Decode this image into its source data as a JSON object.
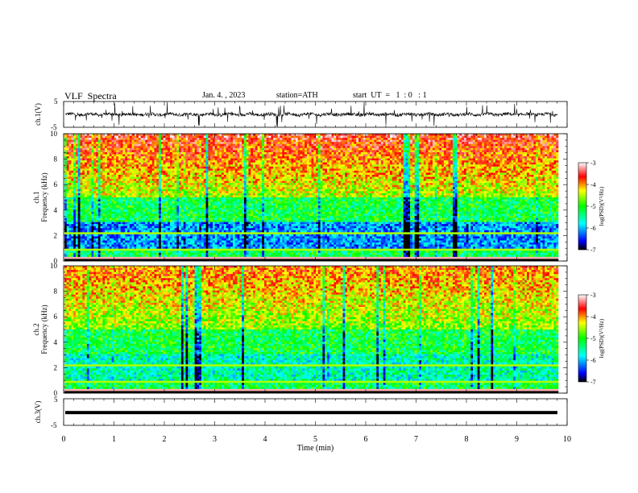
{
  "header": {
    "title": "VLF  Spectra",
    "date": "Jan. 4. , 2023",
    "station": "station=ATH",
    "start": "start  UT  =   1  : 0   : 1"
  },
  "chart_data": [
    {
      "type": "line",
      "name": "ch1-waveform",
      "ylabel": "ch.1(V)",
      "yticks": [
        "5",
        "-5"
      ],
      "ylim": [
        -5,
        5
      ],
      "xlim": [
        0,
        10
      ],
      "grid": false
    },
    {
      "type": "heatmap",
      "name": "ch1-spectrogram",
      "ylabel_lines": [
        "ch.1",
        "Frequency  (kHz)"
      ],
      "yticks": [
        "0",
        "2",
        "4",
        "6",
        "8",
        "10"
      ],
      "ylim": [
        0,
        10
      ],
      "xlim": [
        0,
        10
      ],
      "colorbar": {
        "label": "log(PSD)(V²/Hz)",
        "ticks": [
          "-3",
          "-4",
          "-5",
          "-6",
          "-7"
        ],
        "range": [
          -7,
          -3
        ],
        "colors": [
          "#000000",
          "#0000ff",
          "#00ffff",
          "#00ff00",
          "#ffff00",
          "#ff0000",
          "#ffffff"
        ]
      }
    },
    {
      "type": "heatmap",
      "name": "ch2-spectrogram",
      "ylabel_lines": [
        "ch.2",
        "Frequency  (kHz)"
      ],
      "yticks": [
        "0",
        "2",
        "4",
        "6",
        "8",
        "10"
      ],
      "ylim": [
        0,
        10
      ],
      "xlim": [
        0,
        10
      ],
      "colorbar": {
        "label": "log(PSD)(V²/Hz)",
        "ticks": [
          "-3",
          "-4",
          "-5",
          "-6",
          "-7"
        ],
        "range": [
          -7,
          -3
        ],
        "colors": [
          "#000000",
          "#0000ff",
          "#00ffff",
          "#00ff00",
          "#ffff00",
          "#ff0000",
          "#ffffff"
        ]
      }
    },
    {
      "type": "line",
      "name": "ch3-waveform",
      "ylabel": "ch.3(V)",
      "yticks": [
        "5",
        "-5"
      ],
      "ylim": [
        -5,
        5
      ],
      "xlim": [
        0,
        10
      ],
      "xlabel": "Time  (min)",
      "xticks": [
        "0",
        "1",
        "2",
        "3",
        "4",
        "5",
        "6",
        "7",
        "8",
        "9",
        "10"
      ],
      "grid": false
    }
  ]
}
